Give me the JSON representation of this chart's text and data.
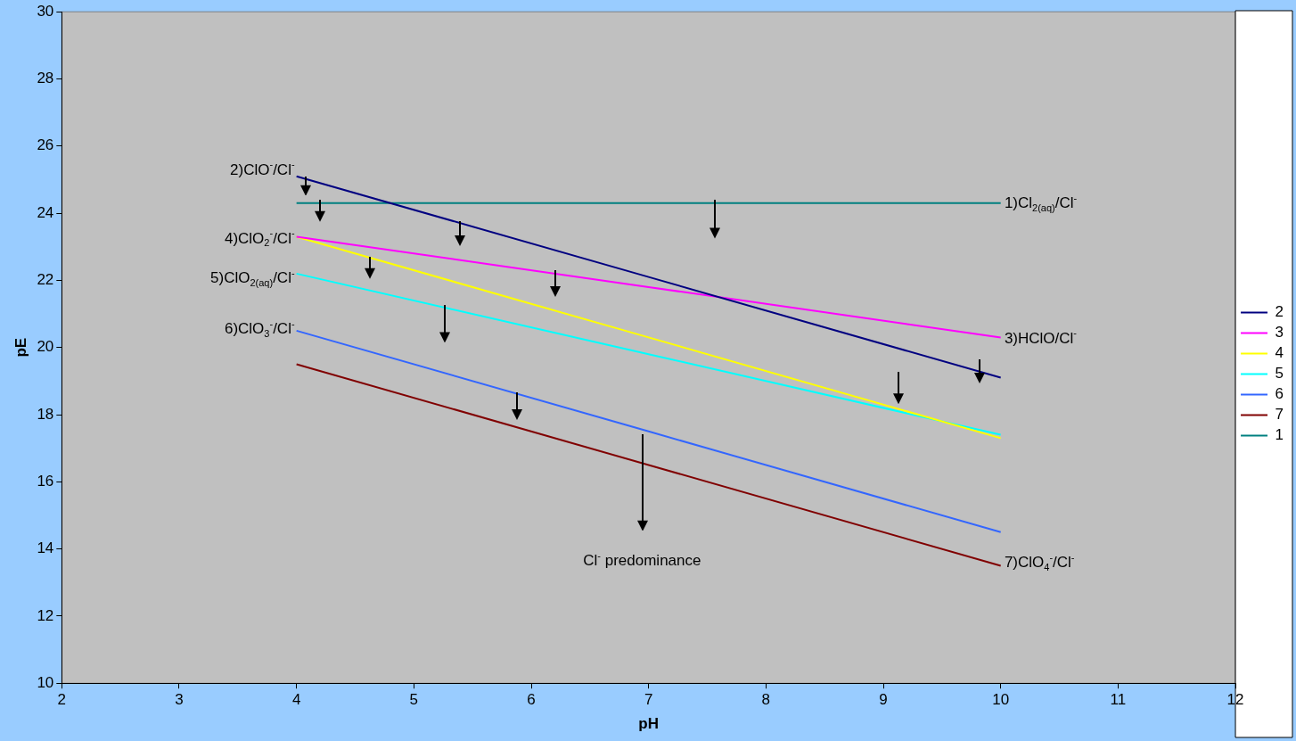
{
  "chart_data": {
    "type": "line",
    "xlabel": "pH",
    "ylabel": "pE",
    "xlim": [
      2,
      12
    ],
    "xticks": [
      2,
      3,
      4,
      5,
      6,
      7,
      8,
      9,
      10,
      11,
      12
    ],
    "ylim": [
      10,
      30
    ],
    "yticks": [
      10,
      12,
      14,
      16,
      18,
      20,
      22,
      24,
      26,
      28,
      30
    ],
    "grid": false,
    "legend": "right",
    "marker": "none",
    "line_style": "solid",
    "series": [
      {
        "name": "2",
        "color": "#000080",
        "x": [
          4,
          7,
          10
        ],
        "values": [
          25.1,
          22.1,
          19.1
        ]
      },
      {
        "name": "3",
        "color": "#ff00ff",
        "x": [
          4,
          7,
          10
        ],
        "values": [
          23.3,
          21.8,
          20.3
        ]
      },
      {
        "name": "4",
        "color": "#ffff00",
        "x": [
          4,
          7,
          10
        ],
        "values": [
          23.3,
          20.3,
          17.3
        ]
      },
      {
        "name": "5",
        "color": "#00ffff",
        "x": [
          4,
          7,
          10
        ],
        "values": [
          22.2,
          19.8,
          17.4
        ]
      },
      {
        "name": "6",
        "color": "#3366ff",
        "x": [
          4,
          7,
          10
        ],
        "values": [
          20.5,
          17.5,
          14.5
        ]
      },
      {
        "name": "7",
        "color": "#800000",
        "x": [
          4,
          7,
          10
        ],
        "values": [
          19.5,
          16.5,
          13.5
        ]
      },
      {
        "name": "1",
        "color": "#008080",
        "x": [
          4,
          7,
          10
        ],
        "values": [
          24.3,
          24.3,
          24.3
        ]
      }
    ],
    "annotations": [
      "2)ClO$^{-}$/Cl$^{-}$",
      "1)Cl$_{2(aq)}$/Cl$^{-}$",
      "4)ClO$_{2}$$^{-}$/Cl$^{-}$",
      "5)ClO$_{2(aq)}$/Cl$^{-}$",
      "6)ClO$_{3}$$^{-}$/Cl$^{-}$",
      "3)HClO/Cl$^{-}$",
      "7)ClO$_{4}$$^{-}$/Cl$^{-}$",
      "Cl$^{-}$ predominance"
    ]
  }
}
